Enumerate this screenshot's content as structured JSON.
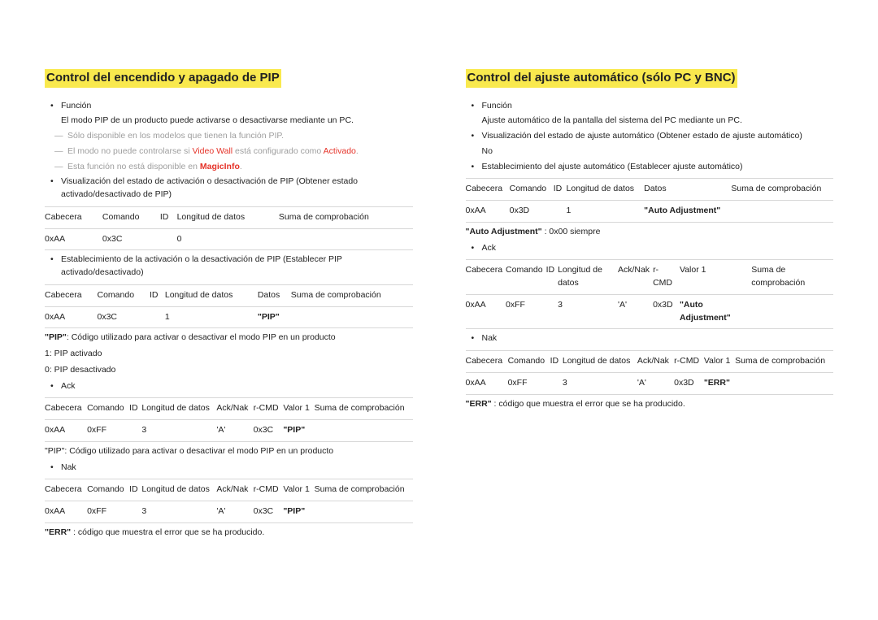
{
  "colors": {
    "highlight_bg": "#f9e94e",
    "text": "#222222",
    "muted": "#9e9e9e",
    "red": "#e53228",
    "rule": "#d7d7d7",
    "bg": "#ffffff"
  },
  "left": {
    "title": "Control del encendido y apagado de PIP",
    "b_func": "Función",
    "func_desc": "El modo PIP de un producto puede activarse o desactivarse mediante un PC.",
    "note1": "Sólo disponible en los modelos que tienen la función PIP.",
    "note2_pre": "El modo no puede controlarse si ",
    "note2_vw": "Video Wall",
    "note2_mid": " está configurado como ",
    "note2_act": "Activado",
    "note2_dot": ".",
    "note3_pre": "Esta función no está disponible en ",
    "note3_mi": "MagicInfo",
    "note3_dot": ".",
    "b_vis": "Visualización del estado de activación o desactivación de PIP (Obtener estado activado/desactivado de PIP)",
    "t1": {
      "h": [
        "Cabecera",
        "Comando",
        "ID",
        "Longitud de datos",
        "Suma de comprobación"
      ],
      "r": [
        "0xAA",
        "0x3C",
        "",
        "0",
        ""
      ]
    },
    "b_set": "Establecimiento de la activación o la desactivación de PIP (Establecer PIP activado/desactivado)",
    "t2": {
      "h": [
        "Cabecera",
        "Comando",
        "ID",
        "Longitud de datos",
        "Datos",
        "Suma de comprobación"
      ],
      "r": [
        "0xAA",
        "0x3C",
        "",
        "1",
        "\"PIP\"",
        ""
      ]
    },
    "pip_code_pre": "\"PIP\"",
    "pip_code": ": Código utilizado para activar o desactivar el modo PIP en un producto",
    "pip_on": "1: PIP activado",
    "pip_off": "0: PIP desactivado",
    "b_ack": "Ack",
    "t3": {
      "h": [
        "Cabecera",
        "Comando",
        "ID",
        "Longitud de datos",
        "Ack/Nak",
        "r-CMD",
        "Valor 1",
        "Suma de comprobación"
      ],
      "r": [
        "0xAA",
        "0xFF",
        "",
        "3",
        "'A'",
        "0x3C",
        "\"PIP\"",
        ""
      ]
    },
    "pip_code2": "\"PIP\": Código utilizado para activar o desactivar el modo PIP en un producto",
    "b_nak": "Nak",
    "t4": {
      "h": [
        "Cabecera",
        "Comando",
        "ID",
        "Longitud de datos",
        "Ack/Nak",
        "r-CMD",
        "Valor 1",
        "Suma de comprobación"
      ],
      "r": [
        "0xAA",
        "0xFF",
        "",
        "3",
        "'A'",
        "0x3C",
        "\"PIP\"",
        ""
      ]
    },
    "err_pre": "\"ERR\"",
    "err": " : código que muestra el error que se ha producido."
  },
  "right": {
    "title": "Control del ajuste automático (sólo PC y BNC)",
    "b_func": "Función",
    "func_desc": "Ajuste automático de la pantalla del sistema del PC mediante un PC.",
    "b_vis1": "Visualización del estado de ajuste automático (Obtener estado de ajuste automático)",
    "vis1_no": "No",
    "b_vis2": "Establecimiento del ajuste automático (Establecer ajuste automático)",
    "t1": {
      "h": [
        "Cabecera",
        "Comando",
        "ID",
        "Longitud de datos",
        "Datos",
        "Suma de comprobación"
      ],
      "r": [
        "0xAA",
        "0x3D",
        "",
        "1",
        "\"Auto Adjustment\"",
        ""
      ]
    },
    "auto_pre": "\"Auto Adjustment\"",
    "auto": " : 0x00 siempre",
    "b_ack": "Ack",
    "t2": {
      "h": [
        "Cabecera",
        "Comando",
        "ID",
        "Longitud de datos",
        "Ack/Nak",
        "r-CMD",
        "Valor 1",
        "Suma de comprobación"
      ],
      "r": [
        "0xAA",
        "0xFF",
        "",
        "3",
        "'A'",
        "0x3D",
        "\"Auto Adjustment\"",
        ""
      ]
    },
    "b_nak": "Nak",
    "t3": {
      "h": [
        "Cabecera",
        "Comando",
        "ID",
        "Longitud de datos",
        "Ack/Nak",
        "r-CMD",
        "Valor 1",
        "Suma de comprobación"
      ],
      "r": [
        "0xAA",
        "0xFF",
        "",
        "3",
        "'A'",
        "0x3D",
        "\"ERR\"",
        ""
      ]
    },
    "err_pre": "\"ERR\"",
    "err": " : código que muestra el error que se ha producido."
  }
}
